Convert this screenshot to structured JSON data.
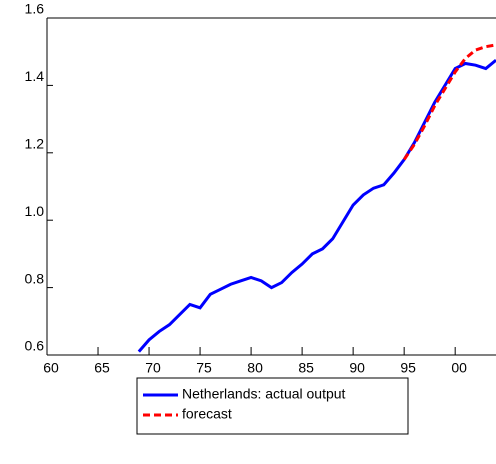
{
  "chart_data": {
    "type": "line",
    "x": [
      1969,
      1970,
      1971,
      1972,
      1973,
      1974,
      1975,
      1976,
      1977,
      1978,
      1979,
      1980,
      1981,
      1982,
      1983,
      1984,
      1985,
      1986,
      1987,
      1988,
      1989,
      1990,
      1991,
      1992,
      1993,
      1994,
      1995,
      1996,
      1997,
      1998,
      1999,
      2000,
      2001,
      2002,
      2003,
      2004
    ],
    "series": [
      {
        "name": "Netherlands: actual output",
        "color": "#0000ff",
        "dash": false,
        "values": [
          0.61,
          0.645,
          0.67,
          0.69,
          0.72,
          0.75,
          0.74,
          0.78,
          0.795,
          0.81,
          0.82,
          0.83,
          0.82,
          0.8,
          0.815,
          0.845,
          0.87,
          0.9,
          0.915,
          0.945,
          0.995,
          1.045,
          1.075,
          1.095,
          1.105,
          1.14,
          1.18,
          1.23,
          1.29,
          1.35,
          1.4,
          1.45,
          1.465,
          1.46,
          1.45,
          1.475
        ]
      },
      {
        "name": "forecast",
        "color": "#ff0000",
        "dash": true,
        "values": [
          null,
          null,
          null,
          null,
          null,
          null,
          null,
          null,
          null,
          null,
          null,
          null,
          null,
          null,
          null,
          null,
          null,
          null,
          null,
          null,
          null,
          null,
          null,
          null,
          null,
          null,
          1.18,
          1.225,
          1.28,
          1.34,
          1.39,
          1.44,
          1.48,
          1.505,
          1.515,
          1.52
        ]
      }
    ],
    "xlim": [
      1960,
      2004
    ],
    "xticks": [
      {
        "value": 1960,
        "label": "60"
      },
      {
        "value": 1965,
        "label": "65"
      },
      {
        "value": 1970,
        "label": "70"
      },
      {
        "value": 1975,
        "label": "75"
      },
      {
        "value": 1980,
        "label": "80"
      },
      {
        "value": 1985,
        "label": "85"
      },
      {
        "value": 1990,
        "label": "90"
      },
      {
        "value": 1995,
        "label": "95"
      },
      {
        "value": 2000,
        "label": "00"
      }
    ],
    "ylim": [
      0.6,
      1.6
    ],
    "yticks": [
      0.6,
      0.8,
      {
        "value": 1,
        "label": "1.0"
      },
      1.2,
      1.4,
      1.6
    ]
  }
}
